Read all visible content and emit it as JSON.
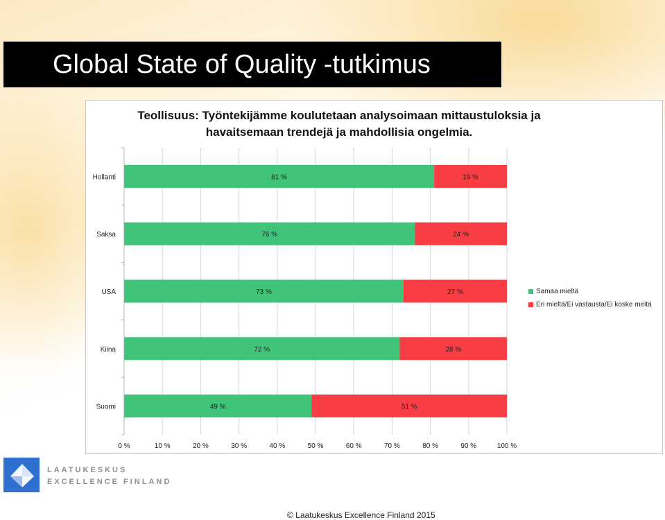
{
  "slide": {
    "title": "Global State of Quality -tutkimus",
    "copyright": "© Laatukeskus Excellence Finland  2015"
  },
  "logo": {
    "line1": "LAATUKESKUS",
    "line2": "EXCELLENCE FINLAND",
    "color": "#2e6fd0"
  },
  "chart_data": {
    "type": "bar",
    "orientation": "horizontal",
    "stacked": true,
    "title": "Teollisuus: Työntekijämme koulutetaan analysoimaan mittaustuloksia ja\nhavaitsemaan trendejä ja mahdollisia ongelmia.",
    "categories": [
      "Hollanti",
      "Saksa",
      "USA",
      "Kiina",
      "Suomi"
    ],
    "series": [
      {
        "name": "Samaa mieltä",
        "color": "#3fc47a",
        "values": [
          81,
          76,
          73,
          72,
          49
        ],
        "labels": [
          "81 %",
          "76 %",
          "73 %",
          "72 %",
          "49 %"
        ]
      },
      {
        "name": "Eri mieltä/Ei vastausta/Ei koske meitä",
        "color": "#f83d44",
        "values": [
          19,
          24,
          27,
          28,
          51
        ],
        "labels": [
          "19 %",
          "24 %",
          "27 %",
          "28 %",
          "51 %"
        ]
      }
    ],
    "x_ticks": [
      "0 %",
      "10 %",
      "20 %",
      "30 %",
      "40 %",
      "50 %",
      "60 %",
      "70 %",
      "80 %",
      "90 %",
      "100 %"
    ],
    "xlim": [
      0,
      100
    ],
    "grid": true,
    "legend_position": "right"
  }
}
